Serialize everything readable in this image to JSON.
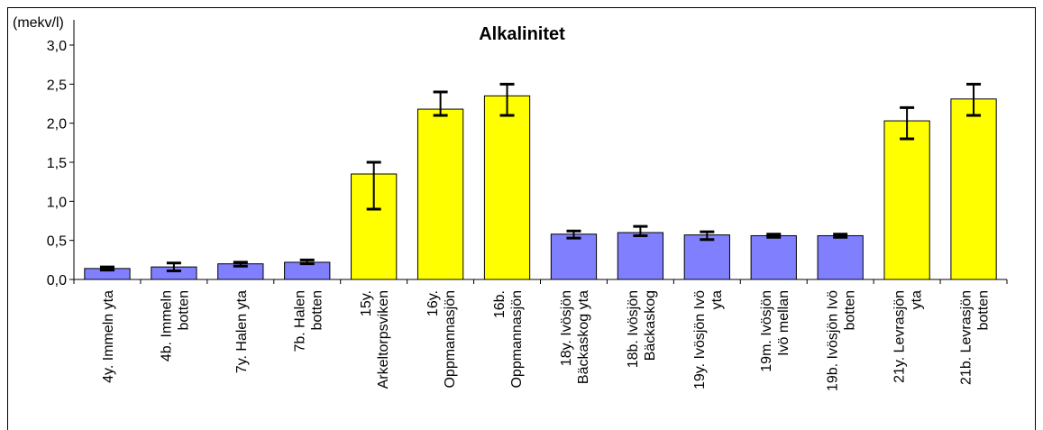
{
  "chart_data": {
    "type": "bar",
    "title": "Alkalinitet",
    "ylabel": "(mekv/l)",
    "xlabel": "",
    "ylim": [
      0,
      3.0
    ],
    "yticks": [
      "0,0",
      "0,5",
      "1,0",
      "1,5",
      "2,0",
      "2,5",
      "3,0"
    ],
    "grid": false,
    "legend": "none",
    "colors": {
      "blue": "#8080ff",
      "yellow": "#ffff00",
      "error": "#000000"
    },
    "categories": [
      [
        "4y. Immeln yta"
      ],
      [
        "4b. Immeln",
        "botten"
      ],
      [
        "7y. Halen yta"
      ],
      [
        "7b. Halen",
        "botten"
      ],
      [
        "15y.",
        "Arkeltorpsviken"
      ],
      [
        "16y.",
        "Oppmannasjön"
      ],
      [
        "16b.",
        "Oppmannasjön"
      ],
      [
        "18y. Ivösjön",
        "Bäckaskog yta"
      ],
      [
        "18b. Ivösjön",
        "Bäckaskog"
      ],
      [
        "19y. Ivösjön Ivö",
        "yta"
      ],
      [
        "19m. Ivösjön",
        "Ivö mellan"
      ],
      [
        "19b. Ivösjön Ivö",
        "botten"
      ],
      [
        "21y. Levrasjön",
        "yta"
      ],
      [
        "21b. Levrasjön",
        "botten"
      ]
    ],
    "values": [
      0.14,
      0.16,
      0.2,
      0.22,
      1.35,
      2.18,
      2.35,
      0.58,
      0.6,
      0.57,
      0.56,
      0.56,
      2.03,
      2.31
    ],
    "err_low": [
      0.12,
      0.11,
      0.17,
      0.2,
      0.9,
      2.1,
      2.1,
      0.53,
      0.56,
      0.51,
      0.54,
      0.54,
      1.8,
      2.1
    ],
    "err_high": [
      0.16,
      0.21,
      0.22,
      0.25,
      1.5,
      2.4,
      2.5,
      0.62,
      0.68,
      0.61,
      0.58,
      0.58,
      2.2,
      2.5
    ],
    "bar_colors": [
      "blue",
      "blue",
      "blue",
      "blue",
      "yellow",
      "yellow",
      "yellow",
      "blue",
      "blue",
      "blue",
      "blue",
      "blue",
      "yellow",
      "yellow"
    ]
  }
}
